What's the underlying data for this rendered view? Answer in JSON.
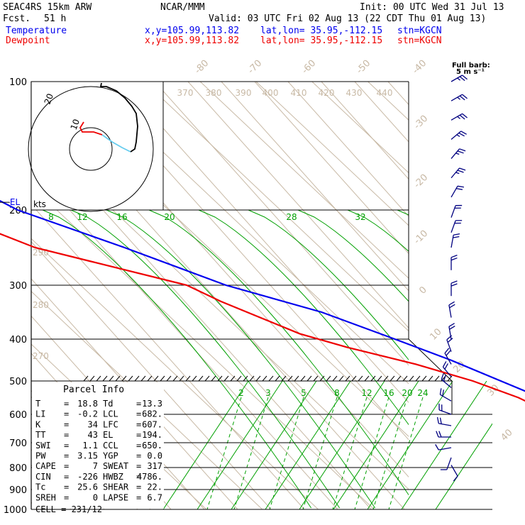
{
  "header": {
    "model": "SEAC4RS 15km ARW",
    "center": "NCAR/MMM",
    "init": "Init: 00 UTC Wed 31 Jul 13",
    "fcst_label": "Fcst.",
    "fcst_value": "51 h",
    "valid": "Valid: 03 UTC Fri 02 Aug 13 (22 CDT Thu 01 Aug 13)",
    "temp_label": "Temperature",
    "temp_xy": "x,y=105.99,113.82",
    "temp_latlon": "lat,lon= 35.95,-112.15",
    "temp_stn": "stn=KGCN",
    "dew_label": "Dewpoint",
    "dew_xy": "x,y=105.99,113.82",
    "dew_latlon": "lat,lon= 35.95,-112.15",
    "dew_stn": "stn=KGCN",
    "barb_note_1": "Full barb:",
    "barb_note_2": "5 m s⁻¹"
  },
  "colors": {
    "temperature": "#0000ee",
    "dewpoint": "#ee0000",
    "isotherm": "#c8b9a5",
    "dry_adiabat": "#c8b9a5",
    "moist_adiabat": "#00a000",
    "mixing_ratio": "#00a000",
    "hodograph_low": "#ee0000",
    "hodograph_mid": "#66ccee",
    "hodograph_high": "#000000",
    "wind_barb": "#000080"
  },
  "chart_data": {
    "type": "skew-t",
    "ylabel": "",
    "pressure_ticks": [
      100,
      200,
      300,
      400,
      500,
      600,
      700,
      800,
      900,
      1000
    ],
    "isotherm_labels": [
      -80,
      -70,
      -60,
      -50,
      -40,
      -30,
      -20,
      -10,
      0,
      10,
      20,
      30,
      40
    ],
    "theta_labels": [
      370,
      380,
      390,
      400,
      410,
      420,
      430,
      440
    ],
    "theta_left_labels": [
      290,
      280,
      270
    ],
    "mixing_ratio_upper_labels": [
      8,
      12,
      16,
      20,
      28,
      32
    ],
    "mixing_ratio_lower_labels": [
      2,
      3,
      5,
      8,
      12,
      16,
      20,
      24
    ],
    "temperature_profile": [
      {
        "p": 100,
        "t": -66
      },
      {
        "p": 120,
        "t": -68
      },
      {
        "p": 140,
        "t": -67
      },
      {
        "p": 160,
        "t": -64
      },
      {
        "p": 180,
        "t": -61
      },
      {
        "p": 200,
        "t": -57
      },
      {
        "p": 250,
        "t": -45
      },
      {
        "p": 300,
        "t": -34
      },
      {
        "p": 350,
        "t": -22
      },
      {
        "p": 400,
        "t": -14
      },
      {
        "p": 450,
        "t": -8
      },
      {
        "p": 500,
        "t": -3
      },
      {
        "p": 550,
        "t": 1
      },
      {
        "p": 600,
        "t": 5
      },
      {
        "p": 650,
        "t": 10
      },
      {
        "p": 700,
        "t": 14
      },
      {
        "p": 750,
        "t": 18
      },
      {
        "p": 795,
        "t": 18.8
      }
    ],
    "dewpoint_profile": [
      {
        "p": 100,
        "t": -75
      },
      {
        "p": 120,
        "t": -80
      },
      {
        "p": 140,
        "t": -89
      },
      {
        "p": 160,
        "t": -89
      },
      {
        "p": 180,
        "t": -80
      },
      {
        "p": 200,
        "t": -71
      },
      {
        "p": 250,
        "t": -61
      },
      {
        "p": 270,
        "t": -53
      },
      {
        "p": 300,
        "t": -41
      },
      {
        "p": 330,
        "t": -38
      },
      {
        "p": 360,
        "t": -34
      },
      {
        "p": 390,
        "t": -30
      },
      {
        "p": 420,
        "t": -24
      },
      {
        "p": 460,
        "t": -15
      },
      {
        "p": 500,
        "t": -8
      },
      {
        "p": 550,
        "t": -3
      },
      {
        "p": 600,
        "t": 0
      },
      {
        "p": 650,
        "t": 3
      },
      {
        "p": 700,
        "t": 6
      },
      {
        "p": 750,
        "t": 9
      },
      {
        "p": 795,
        "t": 13.3
      }
    ],
    "levels": [
      {
        "name": "EL",
        "p": 194
      },
      {
        "name": "LFC",
        "p": 607
      },
      {
        "name": "CCL",
        "p": 650
      },
      {
        "name": "LCL",
        "p": 682
      }
    ],
    "hodograph": {
      "units": "kts",
      "rings": [
        10,
        20
      ],
      "ring_labels": [
        "10",
        "20"
      ]
    },
    "wind_barbs": [
      {
        "p": 100,
        "spd": 15,
        "dir": 60
      },
      {
        "p": 115,
        "spd": 15,
        "dir": 60
      },
      {
        "p": 130,
        "spd": 15,
        "dir": 60
      },
      {
        "p": 145,
        "spd": 15,
        "dir": 50
      },
      {
        "p": 160,
        "spd": 15,
        "dir": 40
      },
      {
        "p": 175,
        "spd": 15,
        "dir": 40
      },
      {
        "p": 190,
        "spd": 10,
        "dir": 30
      },
      {
        "p": 210,
        "spd": 10,
        "dir": 20
      },
      {
        "p": 230,
        "spd": 10,
        "dir": 20
      },
      {
        "p": 250,
        "spd": 10,
        "dir": 10
      },
      {
        "p": 280,
        "spd": 10,
        "dir": 0
      },
      {
        "p": 320,
        "spd": 10,
        "dir": 0
      },
      {
        "p": 360,
        "spd": 10,
        "dir": 350
      },
      {
        "p": 400,
        "spd": 10,
        "dir": 350
      },
      {
        "p": 430,
        "spd": 10,
        "dir": 340
      },
      {
        "p": 460,
        "spd": 10,
        "dir": 330
      },
      {
        "p": 490,
        "spd": 10,
        "dir": 320
      },
      {
        "p": 520,
        "spd": 10,
        "dir": 310
      },
      {
        "p": 560,
        "spd": 10,
        "dir": 300
      },
      {
        "p": 600,
        "spd": 10,
        "dir": 290
      },
      {
        "p": 640,
        "spd": 10,
        "dir": 280
      },
      {
        "p": 680,
        "spd": 10,
        "dir": 270
      },
      {
        "p": 720,
        "spd": 5,
        "dir": 260
      },
      {
        "p": 760,
        "spd": 5,
        "dir": 200
      },
      {
        "p": 790,
        "spd": 5,
        "dir": 150
      }
    ]
  },
  "parcel_info": {
    "title": "Parcel Info",
    "rows": [
      {
        "k1": "T",
        "v1": "18.8",
        "k2": "Td",
        "v2": "13.3"
      },
      {
        "k1": "LI",
        "v1": "-0.2",
        "k2": "LCL",
        "v2": "682."
      },
      {
        "k1": "K",
        "v1": "34",
        "k2": "LFC",
        "v2": "607."
      },
      {
        "k1": "TT",
        "v1": "43",
        "k2": "EL",
        "v2": "194."
      },
      {
        "k1": "SWI",
        "v1": "1.1",
        "k2": "CCL",
        "v2": "650."
      },
      {
        "k1": "PW",
        "v1": "3.15",
        "k2": "YGP",
        "v2": "0.0"
      },
      {
        "k1": "CAPE",
        "v1": "7",
        "k2": "SWEAT",
        "v2": "317"
      },
      {
        "k1": "CIN",
        "v1": "-226",
        "k2": "HWBZ",
        "v2": "4786."
      },
      {
        "k1": "Tc",
        "v1": "25.6",
        "k2": "SHEAR",
        "v2": "22."
      },
      {
        "k1": "SREH",
        "v1": "0",
        "k2": "LAPSE",
        "v2": "6.7"
      }
    ],
    "cell": "CELL = 231/12"
  }
}
